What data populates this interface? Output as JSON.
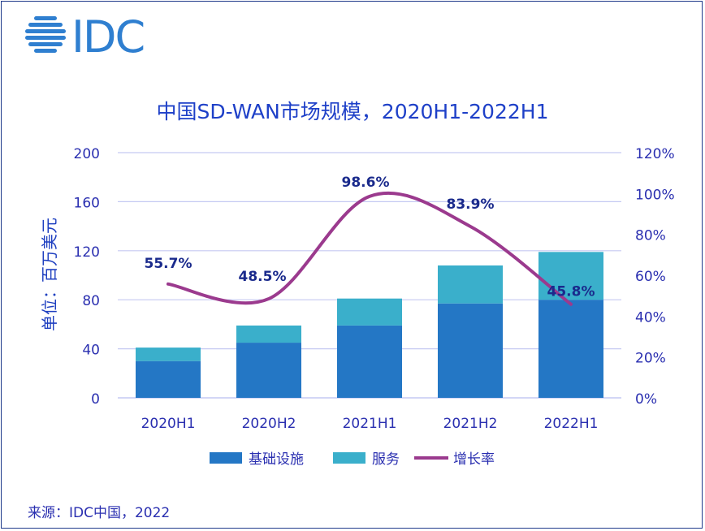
{
  "logo": {
    "text": "IDC",
    "icon": "idc-globe-icon"
  },
  "chart_data": {
    "type": "bar",
    "title": "中国SD-WAN市场规模，2020H1-2022H1",
    "ylabel": "单位：百万美元",
    "categories": [
      "2020H1",
      "2020H2",
      "2021H1",
      "2021H2",
      "2022H1"
    ],
    "stacked": true,
    "ylim": [
      0,
      200
    ],
    "yticks": [
      "0",
      "40",
      "80",
      "120",
      "160",
      "200"
    ],
    "y2lim": [
      0,
      120
    ],
    "y2ticks": [
      "0%",
      "20%",
      "40%",
      "60%",
      "80%",
      "100%",
      "120%"
    ],
    "series": [
      {
        "name": "基础设施",
        "values": [
          30,
          45,
          59,
          77,
          80
        ],
        "color": "#2477c5"
      },
      {
        "name": "服务",
        "values": [
          11,
          14,
          22,
          31,
          39
        ],
        "color": "#3aafcb"
      }
    ],
    "line_series": {
      "name": "增长率",
      "values": [
        55.7,
        48.5,
        98.6,
        83.9,
        45.8
      ],
      "labels": [
        "55.7%",
        "48.5%",
        "98.6%",
        "83.9%",
        "45.8%"
      ],
      "color": "#9b3a8e"
    },
    "grid": true,
    "legend_position": "bottom"
  },
  "source": "来源：IDC中国，2022"
}
